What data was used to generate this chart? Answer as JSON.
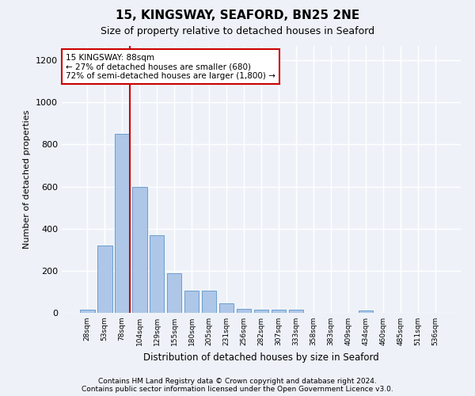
{
  "title1": "15, KINGSWAY, SEAFORD, BN25 2NE",
  "title2": "Size of property relative to detached houses in Seaford",
  "xlabel": "Distribution of detached houses by size in Seaford",
  "ylabel": "Number of detached properties",
  "bar_labels": [
    "28sqm",
    "53sqm",
    "78sqm",
    "104sqm",
    "129sqm",
    "155sqm",
    "180sqm",
    "205sqm",
    "231sqm",
    "256sqm",
    "282sqm",
    "307sqm",
    "333sqm",
    "358sqm",
    "383sqm",
    "409sqm",
    "434sqm",
    "460sqm",
    "485sqm",
    "511sqm",
    "536sqm"
  ],
  "bar_values": [
    15,
    320,
    850,
    600,
    370,
    190,
    105,
    105,
    45,
    20,
    15,
    15,
    15,
    0,
    0,
    0,
    10,
    0,
    0,
    0,
    0
  ],
  "bar_color": "#aec6e8",
  "bar_edgecolor": "#5a96c8",
  "vline_color": "#cc0000",
  "annotation_line1": "15 KINGSWAY: 88sqm",
  "annotation_line2": "← 27% of detached houses are smaller (680)",
  "annotation_line3": "72% of semi-detached houses are larger (1,800) →",
  "annotation_box_color": "#ffffff",
  "annotation_box_edgecolor": "#cc0000",
  "ylim": [
    0,
    1270
  ],
  "yticks": [
    0,
    200,
    400,
    600,
    800,
    1000,
    1200
  ],
  "footer1": "Contains HM Land Registry data © Crown copyright and database right 2024.",
  "footer2": "Contains public sector information licensed under the Open Government Licence v3.0.",
  "background_color": "#eef2f8",
  "plot_background": "#eef2f8",
  "grid_color": "#ffffff"
}
